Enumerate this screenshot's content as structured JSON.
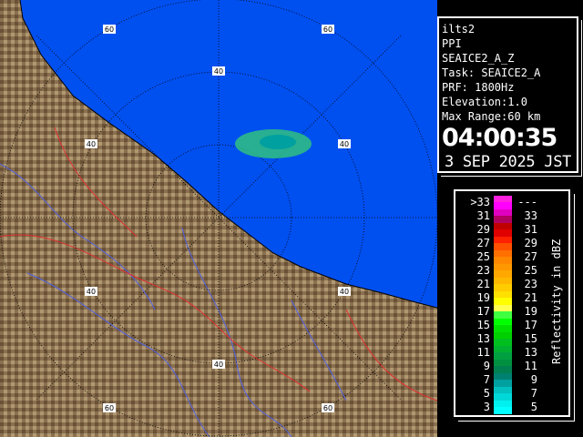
{
  "info": {
    "site": "ilts2",
    "scan_type": "PPI",
    "product": "SEAICE2_A_Z",
    "task": "Task: SEAICE2_A",
    "prf": "PRF: 1800Hz",
    "elevation": "Elevation:1.0",
    "max_range": "Max Range:60 km",
    "time": "04:00:35",
    "date": "3 SEP 2025 JST"
  },
  "map": {
    "range_rings_km": [
      20,
      40,
      60
    ],
    "ring_labels": {
      "r40": "40",
      "r60": "60"
    },
    "colors": {
      "sea": "#0050f0",
      "land": "#8a7050",
      "rivers": "#5060e0",
      "boundaries": "#e03030",
      "echo": "#30c080"
    }
  },
  "legend": {
    "title": "Reflectivity in dBZ",
    "rows": [
      {
        "low": ">33",
        "high": "---",
        "colors": [
          "#ff20e0",
          "#ff00ff"
        ]
      },
      {
        "low": "31",
        "high": "33",
        "colors": [
          "#e000c0",
          "#b00060"
        ]
      },
      {
        "low": "29",
        "high": "31",
        "colors": [
          "#c00000",
          "#e00000"
        ]
      },
      {
        "low": "27",
        "high": "29",
        "colors": [
          "#ff2000",
          "#ff5000"
        ]
      },
      {
        "low": "25",
        "high": "27",
        "colors": [
          "#ff7000",
          "#ff8800"
        ]
      },
      {
        "low": "23",
        "high": "25",
        "colors": [
          "#ff9800",
          "#ffa800"
        ]
      },
      {
        "low": "21",
        "high": "23",
        "colors": [
          "#ffb800",
          "#ffcc00"
        ]
      },
      {
        "low": "19",
        "high": "21",
        "colors": [
          "#ffe000",
          "#ffff00"
        ]
      },
      {
        "low": "17",
        "high": "19",
        "colors": [
          "#ffff50",
          "#40ff40"
        ]
      },
      {
        "low": "15",
        "high": "17",
        "colors": [
          "#00ff00",
          "#00e000"
        ]
      },
      {
        "low": "13",
        "high": "15",
        "colors": [
          "#00d000",
          "#00c020"
        ]
      },
      {
        "low": "11",
        "high": "13",
        "colors": [
          "#00b030",
          "#00a040"
        ]
      },
      {
        "low": "9",
        "high": "11",
        "colors": [
          "#009040",
          "#008050"
        ]
      },
      {
        "low": "7",
        "high": "9",
        "colors": [
          "#008070",
          "#00a0a0"
        ]
      },
      {
        "low": "5",
        "high": "7",
        "colors": [
          "#00c0c0",
          "#00d8d8"
        ]
      },
      {
        "low": "3",
        "high": "5",
        "colors": [
          "#00f0f0",
          "#00ffff"
        ]
      }
    ]
  }
}
